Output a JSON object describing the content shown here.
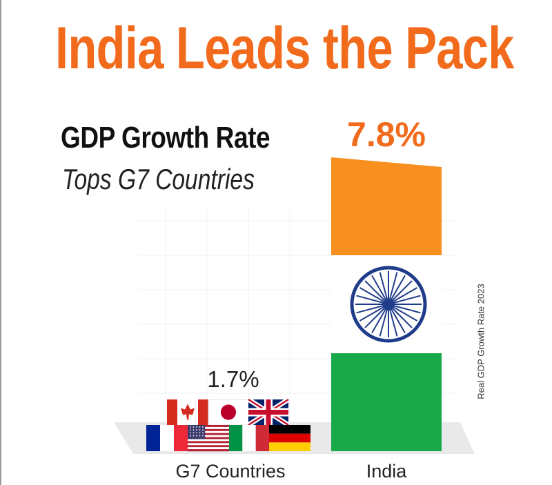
{
  "header": {
    "title": "India Leads the Pack",
    "subtitle": "GDP Growth Rate",
    "tagline": "Tops G7 Countries"
  },
  "side_note": "Real GDP Growth Rate 2023",
  "colors": {
    "accent": "#f26b1d",
    "saffron": "#f7901e",
    "green": "#1aa94a",
    "chakra": "#1f3c8a"
  },
  "chart_data": {
    "type": "bar",
    "categories": [
      "G7 Countries",
      "India"
    ],
    "values": [
      1.7,
      7.8
    ],
    "value_labels": [
      "1.7%",
      "7.8%"
    ],
    "ylabel": "",
    "ylim": [
      0,
      7.8
    ],
    "grid": true,
    "g7_flags": [
      "canada-flag",
      "japan-flag",
      "uk-flag",
      "france-flag",
      "usa-flag",
      "italy-flag",
      "germany-flag"
    ],
    "india_bar_style": "indian-flag"
  }
}
